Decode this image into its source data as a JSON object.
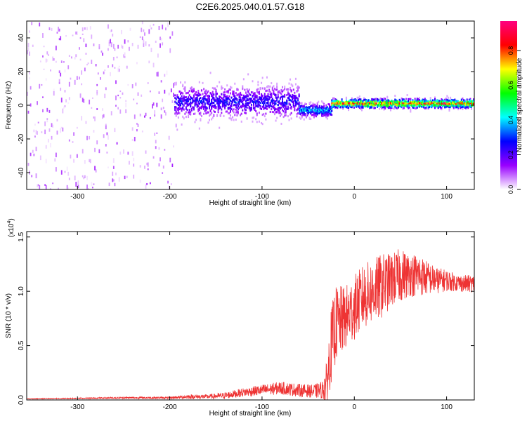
{
  "title": "C2E6.2025.040.01.57.G18",
  "colorbar": {
    "label": "Normalized spectral amplitude",
    "ticks": [
      "0.0",
      "0.2",
      "0.4",
      "0.6",
      "0.8"
    ],
    "tick_values": [
      0.0,
      0.2,
      0.4,
      0.6,
      0.8
    ],
    "range": [
      0,
      0.97
    ],
    "colors": [
      "#ffffff",
      "#9900ff",
      "#0000ff",
      "#00ffff",
      "#00ff00",
      "#ffff00",
      "#ff0000",
      "#ff0080"
    ]
  },
  "chart_data": [
    {
      "type": "heatmap",
      "title": "C2E6.2025.040.01.57.G18",
      "xlabel": "Height of straight line (km)",
      "ylabel": "Frequency (Hz)",
      "xlim": [
        -355,
        130
      ],
      "ylim": [
        -50,
        50
      ],
      "xticks": [
        -300,
        -200,
        -100,
        0,
        100
      ],
      "yticks": [
        -40,
        -20,
        0,
        20,
        40
      ],
      "xtick_labels": [
        "-300",
        "-200",
        "-100",
        "0",
        "100"
      ],
      "ytick_labels": [
        "-40",
        "-20",
        "0",
        "20",
        "40"
      ],
      "regions": [
        {
          "x_range": [
            -355,
            -195
          ],
          "description_value": "broad noise",
          "amplitude": 0.05
        },
        {
          "x_range": [
            -195,
            -60
          ],
          "center_freq": 2,
          "spread_hz": 7,
          "amplitude": 0.3
        },
        {
          "x_range": [
            -60,
            -25
          ],
          "center_freq": -3,
          "spread_hz": 3,
          "amplitude": 0.45
        },
        {
          "x_range": [
            -25,
            130
          ],
          "center_freq": 1,
          "spread_hz": 2,
          "amplitude": 0.9
        }
      ]
    },
    {
      "type": "line",
      "xlabel": "Height of straight line (km)",
      "ylabel": "SNR (10 * v/v)",
      "y_multiplier": "(x10",
      "y_multiplier_exp": "4",
      "y_multiplier_close": ")",
      "xlim": [
        -355,
        130
      ],
      "ylim": [
        0,
        1.55
      ],
      "xticks": [
        -300,
        -200,
        -100,
        0,
        100
      ],
      "yticks": [
        0.0,
        0.5,
        1.0,
        1.5
      ],
      "xtick_labels": [
        "-300",
        "-200",
        "-100",
        "0",
        "100"
      ],
      "ytick_labels": [
        "0.0",
        "0.5",
        "1.0",
        "1.5"
      ],
      "series": [
        {
          "color": "#ee3333",
          "x": [
            -355,
            -300,
            -250,
            -200,
            -180,
            -160,
            -140,
            -120,
            -100,
            -80,
            -60,
            -45,
            -35,
            -30,
            -25,
            -20,
            -10,
            0,
            10,
            20,
            30,
            40,
            50,
            60,
            70,
            80,
            90,
            100,
            110,
            120,
            130
          ],
          "y": [
            0.01,
            0.015,
            0.02,
            0.02,
            0.03,
            0.03,
            0.04,
            0.07,
            0.09,
            0.11,
            0.09,
            0.08,
            0.09,
            0.15,
            0.5,
            0.7,
            0.75,
            0.85,
            0.95,
            1.0,
            1.05,
            1.1,
            1.15,
            1.15,
            1.15,
            1.12,
            1.1,
            1.1,
            1.08,
            1.07,
            1.07
          ],
          "noise": [
            0.003,
            0.005,
            0.008,
            0.01,
            0.02,
            0.02,
            0.03,
            0.04,
            0.05,
            0.06,
            0.06,
            0.06,
            0.08,
            0.2,
            0.35,
            0.35,
            0.3,
            0.3,
            0.3,
            0.3,
            0.3,
            0.25,
            0.25,
            0.2,
            0.2,
            0.15,
            0.12,
            0.1,
            0.08,
            0.08,
            0.08
          ]
        }
      ]
    }
  ]
}
